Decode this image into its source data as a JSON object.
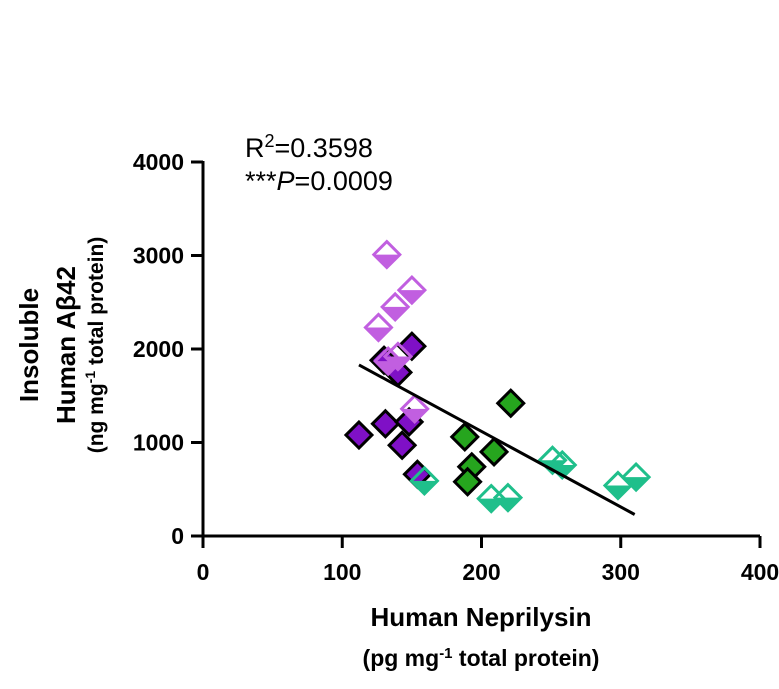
{
  "chart_data": {
    "type": "scatter",
    "title": "",
    "xlabel": [
      "Human Neprilysin",
      "(pg mg",
      "-1",
      " total protein)"
    ],
    "ylabel": [
      "Insoluble",
      "Human Aβ42",
      "(ng mg",
      "-1",
      " total protein)"
    ],
    "xlim": [
      0,
      400
    ],
    "ylim": [
      0,
      4000
    ],
    "x_ticks": [
      "0",
      "100",
      "200",
      "300",
      "400"
    ],
    "y_ticks": [
      "0",
      "1000",
      "2000",
      "3000",
      "4000"
    ],
    "grid": false,
    "annotations": {
      "r2_prefix": "R",
      "r2_sup": "2",
      "r2_value": "=0.3598",
      "p_stars": "***",
      "p_letter": "P",
      "p_value": "=0.0009"
    },
    "colors": {
      "dark_purple": "#7f10c6",
      "light_purple": "#c15fe0",
      "dark_green": "#26a51e",
      "teal": "#1fbf8b"
    },
    "series": [
      {
        "style": "dark_purple_filled",
        "points": [
          [
            112,
            1080
          ],
          [
            131,
            1200
          ],
          [
            130,
            1880
          ],
          [
            140,
            1750
          ],
          [
            143,
            970
          ],
          [
            148,
            1220
          ],
          [
            150,
            2030
          ],
          [
            154,
            660
          ]
        ]
      },
      {
        "style": "light_purple_half",
        "points": [
          [
            132,
            3010
          ],
          [
            126,
            2230
          ],
          [
            138,
            2450
          ],
          [
            150,
            2630
          ],
          [
            133,
            1870
          ],
          [
            140,
            1920
          ],
          [
            152,
            1360
          ]
        ]
      },
      {
        "style": "dark_green_filled",
        "points": [
          [
            188,
            1060
          ],
          [
            193,
            740
          ],
          [
            190,
            580
          ],
          [
            209,
            900
          ],
          [
            221,
            1420
          ]
        ]
      },
      {
        "style": "teal_half",
        "points": [
          [
            159,
            590
          ],
          [
            207,
            400
          ],
          [
            219,
            410
          ],
          [
            251,
            810
          ],
          [
            258,
            760
          ],
          [
            298,
            540
          ],
          [
            311,
            630
          ]
        ]
      }
    ],
    "regression": {
      "x": [
        112,
        310
      ],
      "y": [
        1830,
        230
      ]
    }
  }
}
